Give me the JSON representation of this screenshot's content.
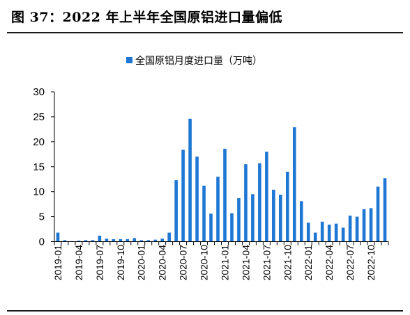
{
  "figure": {
    "title": "图 37：2022 年上半年全国原铝进口量偏低"
  },
  "colors": {
    "bar": "#1f77d4",
    "axis": "#000000",
    "rule": "#1a1a1a"
  },
  "chart_data": {
    "type": "bar",
    "title": "",
    "xlabel": "",
    "ylabel": "",
    "ylim": [
      0,
      30
    ],
    "yticks": [
      0,
      5,
      10,
      15,
      20,
      25,
      30
    ],
    "grid": false,
    "legend_position": "top-center",
    "categories": [
      "2019-01",
      "2019-02",
      "2019-03",
      "2019-04",
      "2019-05",
      "2019-06",
      "2019-07",
      "2019-08",
      "2019-09",
      "2019-10",
      "2019-11",
      "2019-12",
      "2020-01",
      "2020-02",
      "2020-03",
      "2020-04",
      "2020-05",
      "2020-06",
      "2020-07",
      "2020-08",
      "2020-09",
      "2020-10",
      "2020-11",
      "2020-12",
      "2021-01",
      "2021-02",
      "2021-03",
      "2021-04",
      "2021-05",
      "2021-06",
      "2021-07",
      "2021-08",
      "2021-09",
      "2021-10",
      "2021-11",
      "2021-12",
      "2022-01",
      "2022-02",
      "2022-03",
      "2022-04",
      "2022-05",
      "2022-06",
      "2022-07",
      "2022-08",
      "2022-09",
      "2022-10",
      "2022-11",
      "2022-12"
    ],
    "x_tick_labels": [
      "2019-01",
      "2019-04",
      "2019-07",
      "2019-10",
      "2020-01",
      "2020-04",
      "2020-07",
      "2020-10",
      "2021-01",
      "2021-04",
      "2021-07",
      "2021-10",
      "2022-01",
      "2022-04",
      "2022-07",
      "2022-10"
    ],
    "series": [
      {
        "name": "全国原铝月度进口量（万吨）",
        "values": [
          1.8,
          0.3,
          0.1,
          0.2,
          0.3,
          0.3,
          1.2,
          0.6,
          0.5,
          0.5,
          0.5,
          0.7,
          0.3,
          0.3,
          0.4,
          0.6,
          1.8,
          12.3,
          18.4,
          24.6,
          17.0,
          11.2,
          5.6,
          13.0,
          18.6,
          5.7,
          8.7,
          15.5,
          9.5,
          15.7,
          18.0,
          10.4,
          9.4,
          14.0,
          22.9,
          8.1,
          3.8,
          1.8,
          4.0,
          3.4,
          3.6,
          2.8,
          5.2,
          5.0,
          6.5,
          6.7,
          11.0,
          12.7
        ]
      }
    ]
  }
}
